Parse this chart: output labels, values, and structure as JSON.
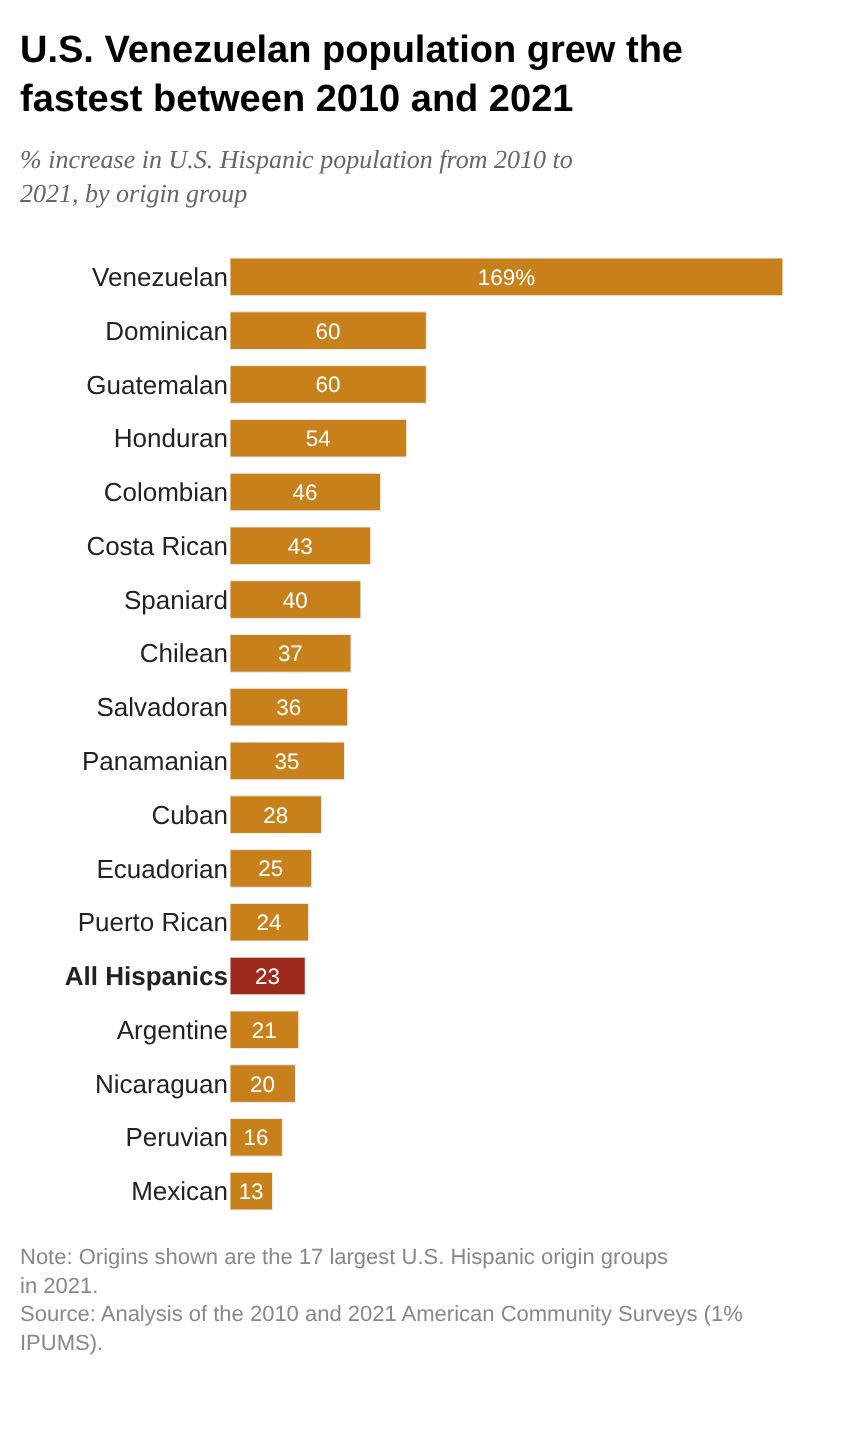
{
  "chart_data": {
    "type": "bar",
    "orientation": "horizontal",
    "title": "U.S. Venezuelan population grew the fastest between 2010 and 2021",
    "subtitle": "% increase in U.S. Hispanic population from 2010 to 2021, by origin group",
    "categories": [
      "Venezuelan",
      "Dominican",
      "Guatemalan",
      "Honduran",
      "Colombian",
      "Costa Rican",
      "Spaniard",
      "Chilean",
      "Salvadoran",
      "Panamanian",
      "Cuban",
      "Ecuadorian",
      "Puerto Rican",
      "All Hispanics",
      "Argentine",
      "Nicaraguan",
      "Peruvian",
      "Mexican"
    ],
    "values": [
      169,
      60,
      60,
      54,
      46,
      43,
      40,
      37,
      36,
      35,
      28,
      25,
      24,
      23,
      21,
      20,
      16,
      13
    ],
    "value_labels": [
      "169%",
      "60",
      "60",
      "54",
      "46",
      "43",
      "40",
      "37",
      "36",
      "35",
      "28",
      "25",
      "24",
      "23",
      "21",
      "20",
      "16",
      "13"
    ],
    "colors": [
      "#c8801a",
      "#c8801a",
      "#c8801a",
      "#c8801a",
      "#c8801a",
      "#c8801a",
      "#c8801a",
      "#c8801a",
      "#c8801a",
      "#c8801a",
      "#c8801a",
      "#c8801a",
      "#c8801a",
      "#9e2a1e",
      "#c8801a",
      "#c8801a",
      "#c8801a",
      "#c8801a"
    ],
    "annotations": [
      "Note: Origins shown are the 17 largest U.S. Hispanic origin groups in 2021.",
      "Source: Analysis of the 2010 and 2021 American Community Surveys (1% IPUMS)."
    ],
    "legend": false
  }
}
